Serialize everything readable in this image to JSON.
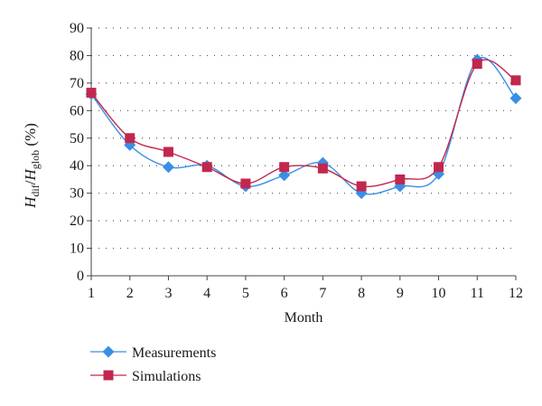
{
  "chart_data": {
    "type": "line",
    "x": [
      1,
      2,
      3,
      4,
      5,
      6,
      7,
      8,
      9,
      10,
      11,
      12
    ],
    "xlabel": "Month",
    "ylabel": {
      "main1": "H",
      "sub1": "dif",
      "slash": "/",
      "main2": "H",
      "sub2": "glob",
      "unit": " (%)"
    },
    "xlim": [
      1,
      12
    ],
    "ylim": [
      0,
      90
    ],
    "yticks": [
      0,
      10,
      20,
      30,
      40,
      50,
      60,
      70,
      80,
      90
    ],
    "grid": "horizontal dotted",
    "legend_position": "bottom-left",
    "series": [
      {
        "name": "Measurements",
        "marker": "diamond",
        "color": "#3a8ee6",
        "values": [
          66,
          47.5,
          39.5,
          40,
          32.5,
          36.5,
          41,
          30,
          32.5,
          37,
          78.5,
          64.5
        ]
      },
      {
        "name": "Simulations",
        "marker": "square",
        "color": "#c2274e",
        "values": [
          66.5,
          50,
          45,
          39.5,
          33.5,
          39.5,
          39,
          32.5,
          35,
          39.5,
          77,
          71
        ]
      }
    ]
  }
}
